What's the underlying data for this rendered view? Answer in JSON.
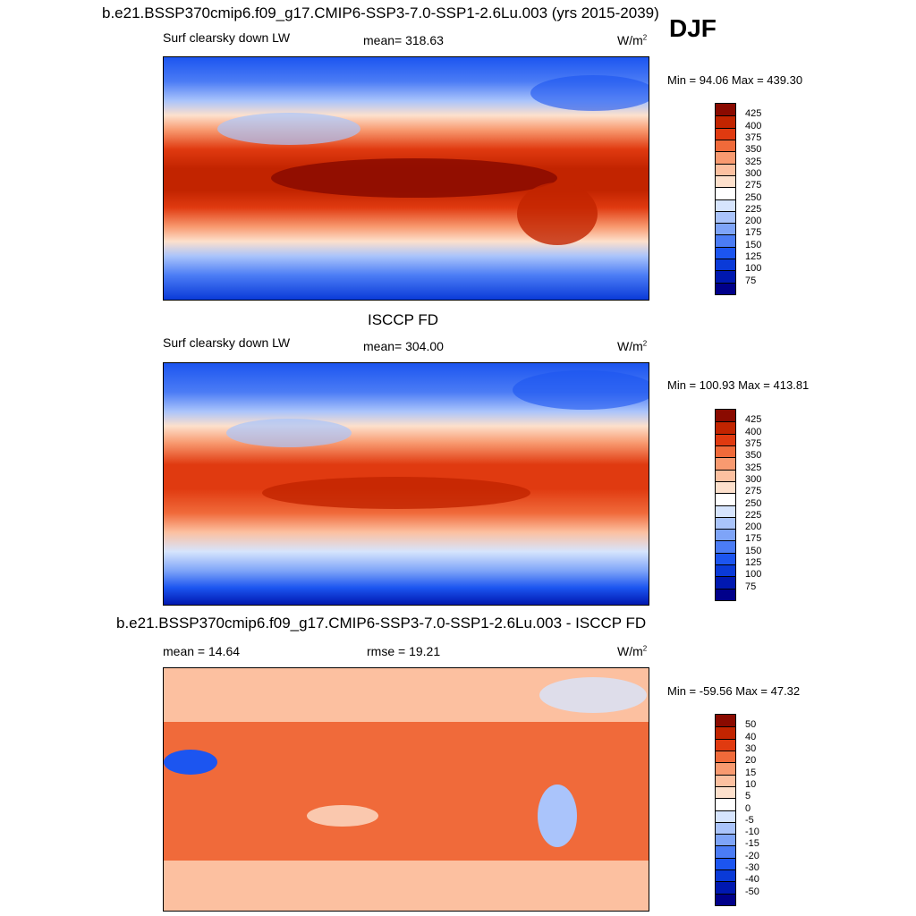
{
  "header": {
    "title": "b.e21.BSSP370cmip6.f09_g17.CMIP6-SSP3-7.0-SSP1-2.6Lu.003 (yrs 2015-2039)",
    "season": "DJF"
  },
  "panels": [
    {
      "id": "model",
      "subtitle_left": "Surf clearsky down LW",
      "subtitle_center": "mean= 318.63",
      "units": "W/m",
      "units_sup": "2",
      "minmax": "Min =  94.06 Max = 439.30"
    },
    {
      "id": "obs",
      "title": "ISCCP FD",
      "subtitle_left": "Surf clearsky down LW",
      "subtitle_center": "mean= 304.00",
      "units": "W/m",
      "units_sup": "2",
      "minmax": "Min = 100.93 Max = 413.81"
    },
    {
      "id": "diff",
      "title": "b.e21.BSSP370cmip6.f09_g17.CMIP6-SSP3-7.0-SSP1-2.6Lu.003 - ISCCP FD",
      "subtitle_left": "mean =  14.64",
      "subtitle_center": "rmse =  19.21",
      "units": "W/m",
      "units_sup": "2",
      "minmax": "Min = -59.56 Max =  47.32"
    }
  ],
  "chart_data": [
    {
      "type": "heatmap",
      "title": "b.e21.BSSP370cmip6.f09_g17.CMIP6-SSP3-7.0-SSP1-2.6Lu.003 (yrs 2015-2039)",
      "variable": "Surf clearsky down LW",
      "units": "W/m2",
      "season": "DJF",
      "mean": 318.63,
      "min": 94.06,
      "max": 439.3,
      "colorbar_levels": [
        75,
        100,
        125,
        150,
        175,
        200,
        225,
        250,
        275,
        300,
        325,
        350,
        375,
        400,
        425
      ],
      "colorbar_colors": [
        "#00008a",
        "#0018b0",
        "#0a3ad8",
        "#1c55f0",
        "#4b7cf5",
        "#7ea4f8",
        "#aac4fb",
        "#d6e4fd",
        "#ffffff",
        "#fde0cc",
        "#fcc0a0",
        "#f89a70",
        "#f06a3a",
        "#e03a10",
        "#c22400",
        "#8a0a00"
      ]
    },
    {
      "type": "heatmap",
      "title": "ISCCP FD",
      "variable": "Surf clearsky down LW",
      "units": "W/m2",
      "season": "DJF",
      "mean": 304.0,
      "min": 100.93,
      "max": 413.81,
      "colorbar_levels": [
        75,
        100,
        125,
        150,
        175,
        200,
        225,
        250,
        275,
        300,
        325,
        350,
        375,
        400,
        425
      ],
      "colorbar_colors": [
        "#00008a",
        "#0018b0",
        "#0a3ad8",
        "#1c55f0",
        "#4b7cf5",
        "#7ea4f8",
        "#aac4fb",
        "#d6e4fd",
        "#ffffff",
        "#fde0cc",
        "#fcc0a0",
        "#f89a70",
        "#f06a3a",
        "#e03a10",
        "#c22400",
        "#8a0a00"
      ]
    },
    {
      "type": "heatmap",
      "title": "b.e21.BSSP370cmip6.f09_g17.CMIP6-SSP3-7.0-SSP1-2.6Lu.003 - ISCCP FD",
      "units": "W/m2",
      "season": "DJF",
      "mean": 14.64,
      "rmse": 19.21,
      "min": -59.56,
      "max": 47.32,
      "colorbar_levels": [
        -50,
        -40,
        -30,
        -20,
        -15,
        -10,
        -5,
        0,
        5,
        10,
        15,
        20,
        30,
        40,
        50
      ],
      "colorbar_colors": [
        "#00008a",
        "#0018b0",
        "#0a3ad8",
        "#1c55f0",
        "#4b7cf5",
        "#7ea4f8",
        "#aac4fb",
        "#d6e4fd",
        "#ffffff",
        "#fde0cc",
        "#fcc0a0",
        "#f89a70",
        "#f06a3a",
        "#e03a10",
        "#c22400",
        "#8a0a00"
      ]
    }
  ]
}
